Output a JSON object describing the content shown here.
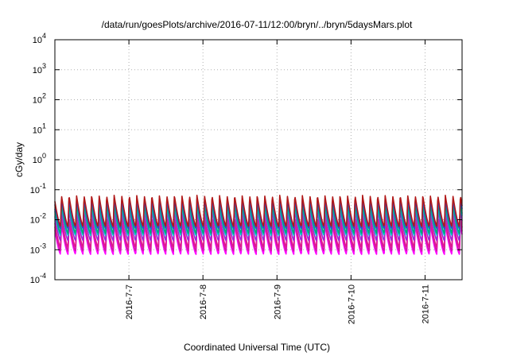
{
  "chart_data": {
    "type": "line",
    "title": "/data/run/goesPlots/archive/2016-07-11/12:00/bryn/../bryn/5daysMars.plot",
    "xlabel": "Coordinated Universal Time (UTC)",
    "ylabel": "cGy/day",
    "y_scale": "log",
    "ylim": [
      0.0001,
      10000
    ],
    "y_ticks": [
      {
        "value": 0.0001,
        "base": "10",
        "exp": "-4"
      },
      {
        "value": 0.001,
        "base": "10",
        "exp": "-3"
      },
      {
        "value": 0.01,
        "base": "10",
        "exp": "-2"
      },
      {
        "value": 0.1,
        "base": "10",
        "exp": "-1"
      },
      {
        "value": 1,
        "base": "10",
        "exp": "0"
      },
      {
        "value": 10,
        "base": "10",
        "exp": "1"
      },
      {
        "value": 100,
        "base": "10",
        "exp": "2"
      },
      {
        "value": 1000,
        "base": "10",
        "exp": "3"
      },
      {
        "value": 10000,
        "base": "10",
        "exp": "4"
      }
    ],
    "xlim": [
      "2016-07-06 00:00",
      "2016-07-11 12:00"
    ],
    "x_ticks": [
      "2016-7-7",
      "2016-7-8",
      "2016-7-9",
      "2016-7-10",
      "2016-7-11"
    ],
    "grid": true,
    "oscillation_period_hours": 2.44,
    "series": [
      {
        "color": "#ff00ff",
        "min": 0.0007,
        "max": 0.007
      },
      {
        "color": "#d11aa8",
        "min": 0.0009,
        "max": 0.009
      },
      {
        "color": "#e0198f",
        "min": 0.0012,
        "max": 0.012
      },
      {
        "color": "#9a2bd6",
        "min": 0.002,
        "max": 0.02
      },
      {
        "color": "#00c9c9",
        "min": 0.003,
        "max": 0.03
      },
      {
        "color": "#00a87a",
        "min": 0.0035,
        "max": 0.035
      },
      {
        "color": "#2a44d8",
        "min": 0.005,
        "max": 0.05
      },
      {
        "color": "#b01818",
        "min": 0.006,
        "max": 0.065
      }
    ]
  }
}
